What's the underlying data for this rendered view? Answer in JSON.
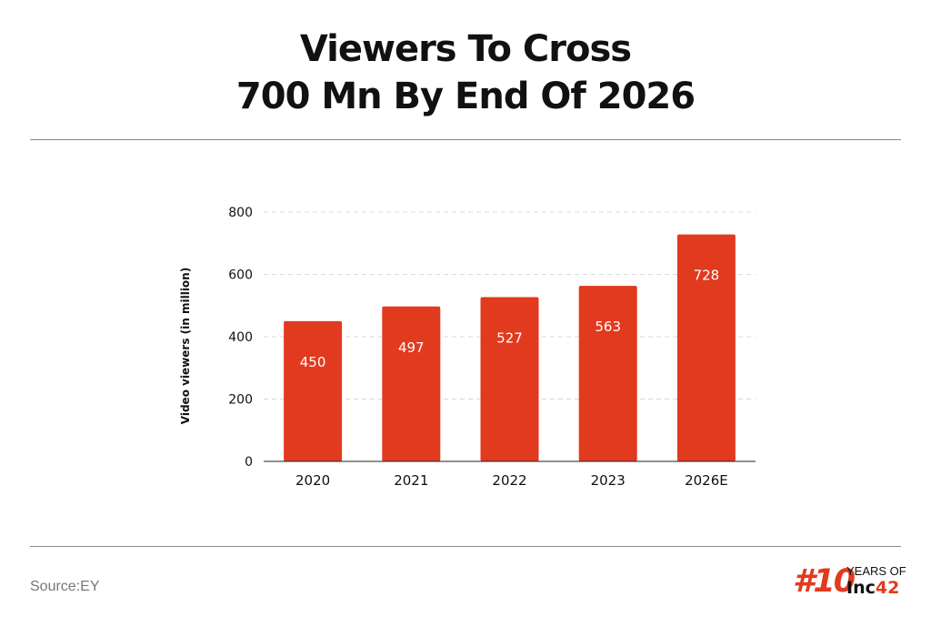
{
  "header": {
    "title_line1": "Viewers To Cross",
    "title_line2": "700 Mn By End Of 2026"
  },
  "chart_data": {
    "type": "bar",
    "title": "Viewers To Cross 700 Mn By End Of 2026",
    "categories": [
      "2020",
      "2021",
      "2022",
      "2023",
      "2026E"
    ],
    "values": [
      450,
      497,
      527,
      563,
      728
    ],
    "data_labels": [
      "450",
      "497",
      "527",
      "563",
      "728"
    ],
    "xlabel": "",
    "ylabel": "Video viewers (in million)",
    "ylim": [
      0,
      800
    ],
    "yticks": [
      0,
      200,
      400,
      600,
      800
    ],
    "ytick_labels": [
      "0",
      "200",
      "400",
      "600",
      "800"
    ],
    "grid": true,
    "bar_color": "#e23a1f",
    "label_color": "#ffffff",
    "grid_color": "#d9d9d9",
    "legend": "none"
  },
  "footer": {
    "source": "Source:EY",
    "logo": {
      "hash": "#10",
      "years": "YEARS OF",
      "brand_text": "Inc",
      "brand_num": "42",
      "accent_color": "#e23a1f"
    }
  }
}
